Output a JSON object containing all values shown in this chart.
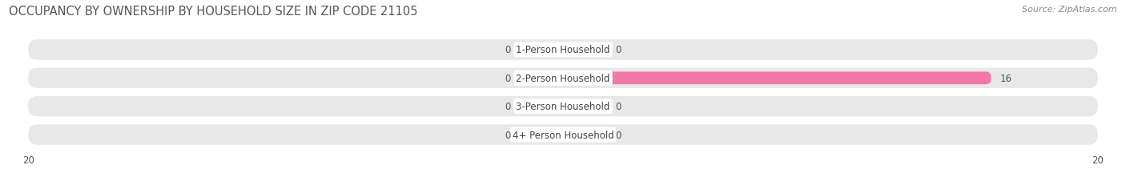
{
  "title": "OCCUPANCY BY OWNERSHIP BY HOUSEHOLD SIZE IN ZIP CODE 21105",
  "source": "Source: ZipAtlas.com",
  "categories": [
    "1-Person Household",
    "2-Person Household",
    "3-Person Household",
    "4+ Person Household"
  ],
  "owner_values": [
    0,
    0,
    0,
    0
  ],
  "renter_values": [
    0,
    16,
    0,
    0
  ],
  "owner_color": "#69c6c0",
  "renter_color": "#f279a8",
  "renter_stub_color": "#f9b8d0",
  "row_bg_color": "#e8e8e8",
  "row_bg_color2": "#d8d8d8",
  "label_bg_color": "#ffffff",
  "xlim": 20,
  "title_fontsize": 10.5,
  "source_fontsize": 8,
  "label_fontsize": 8.5,
  "tick_fontsize": 8.5,
  "value_fontsize": 8.5
}
